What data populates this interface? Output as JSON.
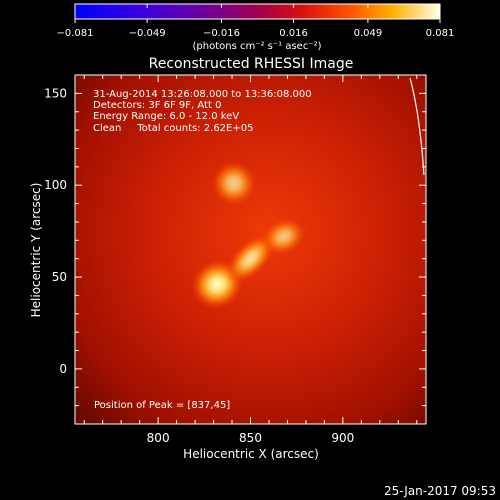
{
  "chart_data": {
    "type": "heatmap",
    "title": "Reconstructed RHESSI Image",
    "xlabel": "Heliocentric X (arcsec)",
    "ylabel": "Heliocentric Y (arcsec)",
    "xlim": [
      755,
      945
    ],
    "ylim": [
      -30,
      160
    ],
    "xticks": [
      "800",
      "850",
      "900"
    ],
    "xtick_values": [
      800,
      850,
      900
    ],
    "yticks": [
      "0",
      "50",
      "100",
      "150"
    ],
    "ytick_values": [
      0,
      50,
      100,
      150
    ],
    "colorbar": {
      "ticks": [
        "−0.081",
        "−0.049",
        "−0.016",
        "0.016",
        "0.049",
        "0.081"
      ],
      "tick_values": [
        -0.081,
        -0.049,
        -0.016,
        0.016,
        0.049,
        0.081
      ],
      "range": [
        -0.081,
        0.081
      ],
      "unit_label": "(photons cm⁻² s⁻¹ asec⁻²)"
    },
    "info_lines": [
      "31-Aug-2014 13:26:08.000 to 13:36:08.000",
      "Detectors: 3F 6F 9F, Att 0",
      "Energy Range: 6.0 - 12.0 keV",
      "Clean     Total counts: 2.62E+05"
    ],
    "peak_label": "Position of Peak = [837,45]",
    "sources": [
      {
        "x": 841,
        "y": 101,
        "intensity": 0.75
      },
      {
        "x": 832,
        "y": 46,
        "intensity": 1.0
      },
      {
        "x": 850,
        "y": 60,
        "intensity": 0.85
      },
      {
        "x": 868,
        "y": 72,
        "intensity": 0.7
      }
    ],
    "colors": {
      "background": "#000000",
      "image_base": "#c01000",
      "hot": "#ffffd0"
    }
  },
  "footer": {
    "timestamp": "25-Jan-2017 09:53"
  }
}
